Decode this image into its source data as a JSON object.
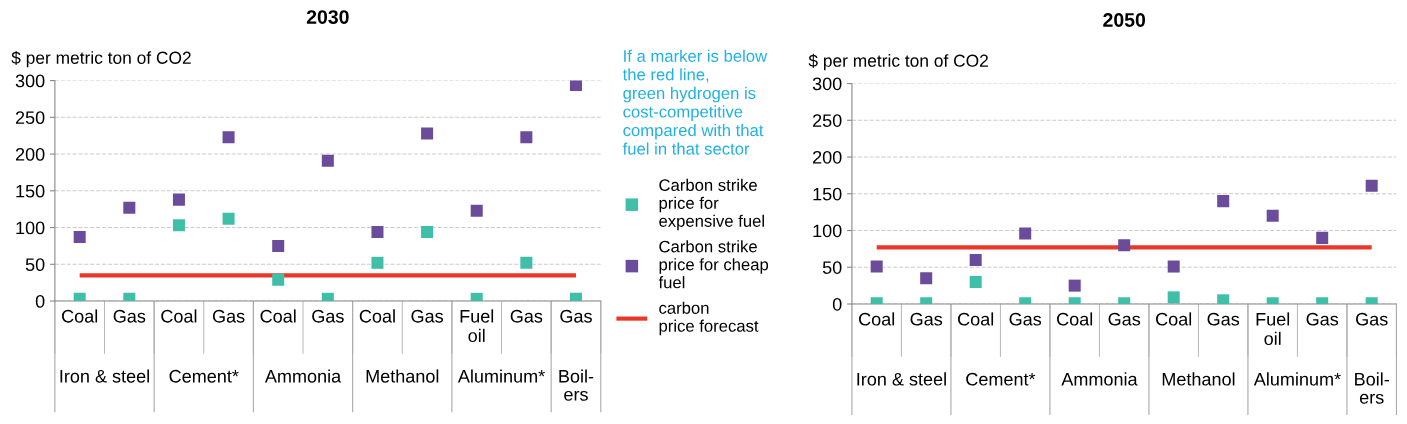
{
  "chart_data": [
    {
      "type": "scatter",
      "title": "2030",
      "ylabel": "$ per metric ton of CO2",
      "categories": [
        "Coal",
        "Gas",
        "Coal",
        "Gas",
        "Coal",
        "Gas",
        "Coal",
        "Gas",
        "Fuel\noil",
        "Gas",
        "Gas"
      ],
      "annotations": [
        "Iron & steel",
        "Cement*",
        "Ammonia",
        "Methanol",
        "Aluminum*",
        "Boil-\ners",
        {
          "text": "If a marker is below\nthe red line,\ngreen hydrogen is\ncost-competitive\ncompared with that\nfuel in that sector"
        }
      ],
      "series": [
        {
          "name": "Carbon strike\nprice for\nexpensive fuel",
          "color": "#40bfa8",
          "values": [
            3,
            3,
            103,
            112,
            29,
            3,
            52,
            94,
            3,
            52,
            3
          ]
        },
        {
          "name": "Carbon strike\nprice for cheap\nfuel",
          "color": "#6b4c9a",
          "values": [
            87,
            127,
            138,
            223,
            75,
            191,
            94,
            228,
            123,
            223,
            294
          ]
        }
      ],
      "ref_lines": [
        {
          "axis": "y",
          "value": 35,
          "label": "carbon\nprice forecast",
          "color": "#e8382a"
        }
      ],
      "ylim": [
        0,
        300
      ],
      "yticks": [
        0,
        50,
        100,
        150,
        200,
        250,
        300
      ],
      "grid": "y",
      "marker": "square",
      "legend": "right"
    },
    {
      "type": "scatter",
      "title": "2050",
      "ylabel": "$ per metric ton of CO2",
      "categories": [
        "Coal",
        "Gas",
        "Coal",
        "Gas",
        "Coal",
        "Gas",
        "Coal",
        "Gas",
        "Fuel\noil",
        "Gas",
        "Gas"
      ],
      "annotations": [
        "Iron & steel",
        "Cement*",
        "Ammonia",
        "Methanol",
        "Aluminum*",
        "Boil-\ners"
      ],
      "series": [
        {
          "color": "#40bfa8",
          "values": [
            1,
            1,
            30,
            1,
            1,
            1,
            9,
            5,
            1,
            1,
            1
          ]
        },
        {
          "color": "#6b4c9a",
          "values": [
            51,
            35,
            60,
            96,
            25,
            80,
            51,
            140,
            120,
            90,
            161
          ]
        }
      ],
      "ref_lines": [
        {
          "axis": "y",
          "value": 77,
          "color": "#e8382a"
        }
      ],
      "ylim": [
        0,
        300
      ],
      "yticks": [
        0,
        50,
        100,
        150,
        200,
        250,
        300
      ],
      "grid": "y",
      "marker": "square"
    }
  ]
}
